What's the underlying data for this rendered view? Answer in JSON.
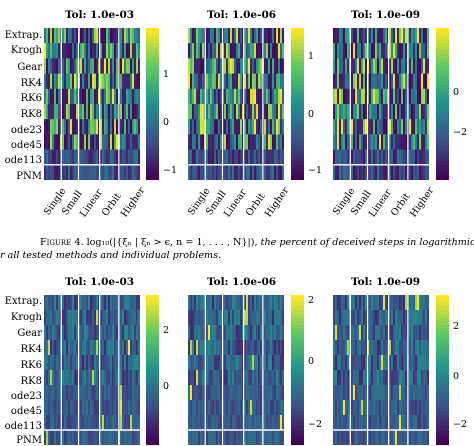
{
  "figure_top": {
    "panels": [
      {
        "title": "Tol:  1.0e-03",
        "colorbar_ticks": [
          "1",
          "0",
          "−1"
        ]
      },
      {
        "title": "Tol:  1.0e-06",
        "colorbar_ticks": [
          "1",
          "0",
          "−1"
        ]
      },
      {
        "title": "Tol:  1.0e-09",
        "colorbar_ticks": [
          "0",
          "−2"
        ]
      }
    ],
    "row_labels": [
      "Extrap.",
      "Krogh",
      "Gear",
      "RK4",
      "RK6",
      "RK8",
      "ode23",
      "ode45",
      "ode113",
      "PNM"
    ],
    "col_labels": [
      "Single",
      "Small",
      "Linear",
      "Orbit",
      "Higher"
    ]
  },
  "caption": {
    "prefix": "Figure 4.",
    "math": "log₁₀(|{ξₙ | ξₙ > ϵ, n = 1, . . . , N}|),",
    "text1": " the percent of deceived steps in logarithmic scal",
    "text2": "r all tested methods and individual problems."
  },
  "figure_bottom": {
    "panels": [
      {
        "title": "Tol:  1.0e-03",
        "colorbar_ticks": [
          "2",
          "0"
        ]
      },
      {
        "title": "Tol:  1.0e-06",
        "colorbar_ticks": [
          "2",
          "0",
          "−2"
        ]
      },
      {
        "title": "Tol:  1.0e-09",
        "colorbar_ticks": [
          "2",
          "0",
          "−2"
        ]
      }
    ],
    "row_labels": [
      "Extrap.",
      "Krogh",
      "Gear",
      "RK4",
      "RK6",
      "RK8",
      "ode23",
      "ode45",
      "ode113",
      "PNM"
    ]
  },
  "colors": {
    "viridis_low": "#440154",
    "viridis_mid": "#21918c",
    "viridis_high": "#fde725"
  }
}
